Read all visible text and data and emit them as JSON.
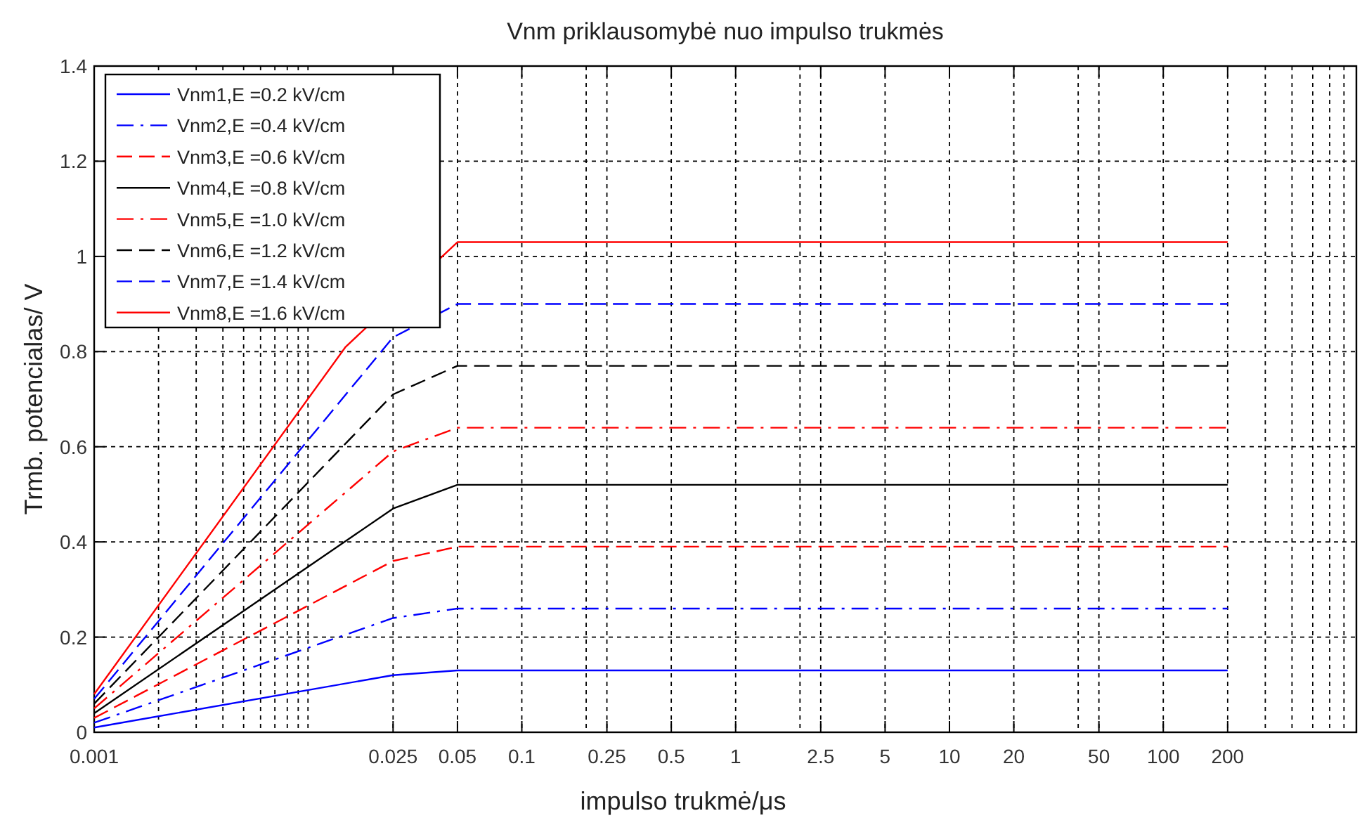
{
  "chart_data": {
    "type": "line",
    "title": "Vnm priklausomybė nuo impulso trukmės",
    "xlabel": "impulso trukmė/μs",
    "ylabel": "Trmb. potencialas/ V",
    "x": [
      0.001,
      0.025,
      0.05,
      200
    ],
    "series": [
      {
        "name": "Vnm1,E =0.2 kV/cm",
        "color": "#0000ff",
        "line_style": "solid",
        "values": [
          0.01,
          0.12,
          0.13,
          0.13
        ]
      },
      {
        "name": "Vnm2,E =0.4 kV/cm",
        "color": "#0000ff",
        "line_style": "dashdot",
        "values": [
          0.02,
          0.24,
          0.26,
          0.26
        ]
      },
      {
        "name": "Vnm3,E =0.6 kV/cm",
        "color": "#ff0000",
        "line_style": "dashed",
        "values": [
          0.03,
          0.36,
          0.39,
          0.39
        ]
      },
      {
        "name": "Vnm4,E =0.8 kV/cm",
        "color": "#000000",
        "line_style": "solid",
        "values": [
          0.04,
          0.47,
          0.52,
          0.52
        ]
      },
      {
        "name": "Vnm5,E =1.0 kV/cm",
        "color": "#ff0000",
        "line_style": "dashdot",
        "values": [
          0.05,
          0.59,
          0.64,
          0.64
        ]
      },
      {
        "name": "Vnm6,E =1.2 kV/cm",
        "color": "#000000",
        "line_style": "dashed",
        "values": [
          0.06,
          0.71,
          0.77,
          0.77
        ]
      },
      {
        "name": "Vnm7,E =1.4 kV/cm",
        "color": "#0000ff",
        "line_style": "dashed",
        "values": [
          0.07,
          0.83,
          0.9,
          0.9
        ]
      },
      {
        "name": "Vnm8,E =1.6 kV/cm",
        "color": "#ff0000",
        "line_style": "solid",
        "x": [
          0.001,
          0.015,
          0.05,
          200
        ],
        "values": [
          0.08,
          0.81,
          1.03,
          1.03
        ]
      }
    ],
    "log": "x",
    "xlim": [
      0.001,
      800
    ],
    "ylim": [
      0,
      1.4
    ],
    "xticks": [
      0.001,
      {
        "value": 0.002,
        "label": null
      },
      {
        "value": 0.003,
        "label": null
      },
      {
        "value": 0.004,
        "label": null
      },
      {
        "value": 0.005,
        "label": null
      },
      {
        "value": 0.006,
        "label": null
      },
      {
        "value": 0.007,
        "label": null
      },
      {
        "value": 0.008,
        "label": null
      },
      {
        "value": 0.009,
        "label": null
      },
      {
        "value": 0.01,
        "label": null
      },
      0.025,
      0.05,
      0.1,
      {
        "value": 0.2,
        "label": null
      },
      0.25,
      0.5,
      1,
      {
        "value": 2,
        "label": null
      },
      2.5,
      5,
      10,
      20,
      {
        "value": 40,
        "label": null
      },
      50,
      100,
      200,
      {
        "value": 300,
        "label": null
      },
      {
        "value": 400,
        "label": null
      },
      {
        "value": 500,
        "label": null
      },
      {
        "value": 600,
        "label": null
      },
      {
        "value": 700,
        "label": null
      },
      {
        "value": 800,
        "label": null
      }
    ],
    "yticks": [
      0,
      0.2,
      0.4,
      0.6,
      0.8,
      1,
      1.2,
      1.4
    ],
    "grid": true,
    "legend": "top left",
    "marker": "none"
  }
}
